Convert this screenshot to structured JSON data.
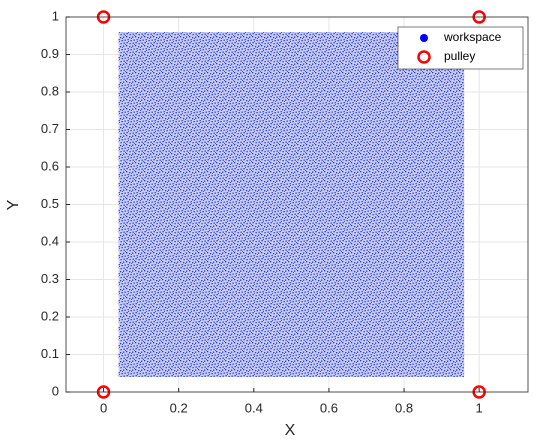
{
  "chart_data": {
    "type": "scatter",
    "x_label": "X",
    "y_label": "Y",
    "xlim": [
      -0.1,
      1.13
    ],
    "ylim": [
      0,
      1
    ],
    "xticks": [
      0,
      0.2,
      0.4,
      0.6,
      0.8,
      1
    ],
    "yticks": [
      0,
      0.1,
      0.2,
      0.3,
      0.4,
      0.5,
      0.6,
      0.7,
      0.8,
      0.9,
      1
    ],
    "grid": true,
    "legend": "northeast",
    "series": [
      {
        "name": "workspace",
        "color": "#0000ff",
        "extent": {
          "x": [
            0.04,
            0.96
          ],
          "y": [
            0.04,
            0.96
          ]
        }
      },
      {
        "name": "pulley",
        "color": "#ff0000",
        "x": [
          0,
          1,
          0,
          1
        ],
        "y": [
          1,
          1,
          0,
          0
        ]
      }
    ]
  }
}
